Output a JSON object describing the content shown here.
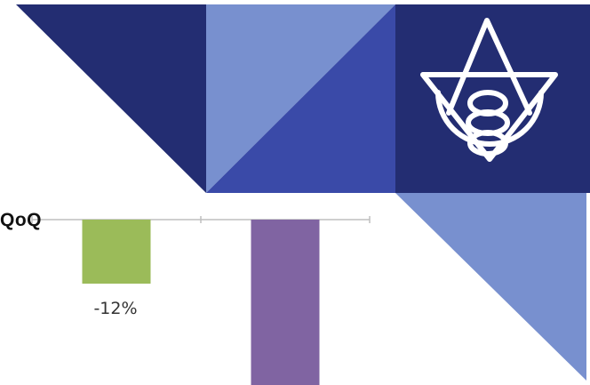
{
  "colors": {
    "navy": "#232d72",
    "light_blue": "#7890cf",
    "royal_blue": "#3a4aa8",
    "emblem_stroke": "#ffffff",
    "axis": "#bfbfbf",
    "series_colors": [
      "#9bbb59",
      "#8064a2"
    ]
  },
  "decor": {
    "emblem": "triangle-circles-emblem"
  },
  "chart_data": {
    "type": "bar",
    "series_label": "QoQ",
    "categories": [
      "",
      ""
    ],
    "values": [
      -12,
      -31
    ],
    "value_labels": [
      "-12%",
      ""
    ],
    "ylim": [
      -31,
      0
    ],
    "grid": false,
    "legend": "none"
  }
}
